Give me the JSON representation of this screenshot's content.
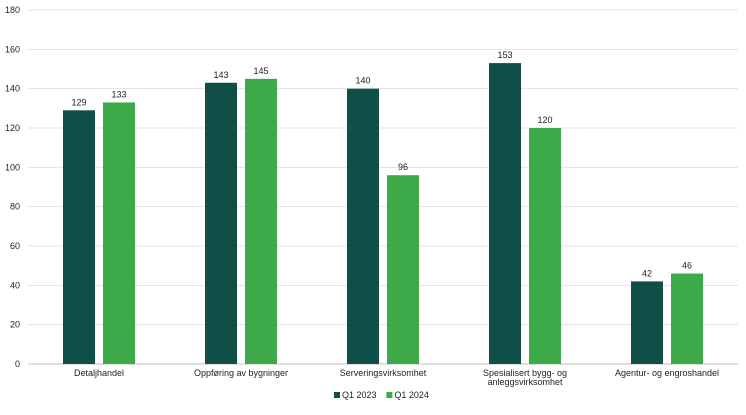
{
  "chart_data": {
    "type": "bar",
    "title": "",
    "xlabel": "",
    "ylabel": "",
    "ylim": [
      0,
      180
    ],
    "yticks": [
      0,
      20,
      40,
      60,
      80,
      100,
      120,
      140,
      160,
      180
    ],
    "grid": true,
    "legend_position": "bottom",
    "categories": [
      [
        "Detaljhandel"
      ],
      [
        "Oppføring av bygninger"
      ],
      [
        "Serveringsvirksomhet"
      ],
      [
        "Spesialisert bygg- og",
        "anleggsvirksomhet"
      ],
      [
        "Agentur- og engroshandel"
      ]
    ],
    "series": [
      {
        "name": "Q1 2023",
        "color": "#0f4f47",
        "values": [
          129,
          143,
          140,
          153,
          42
        ]
      },
      {
        "name": "Q1 2024",
        "color": "#3daa4a",
        "values": [
          133,
          145,
          96,
          120,
          46
        ]
      }
    ]
  }
}
